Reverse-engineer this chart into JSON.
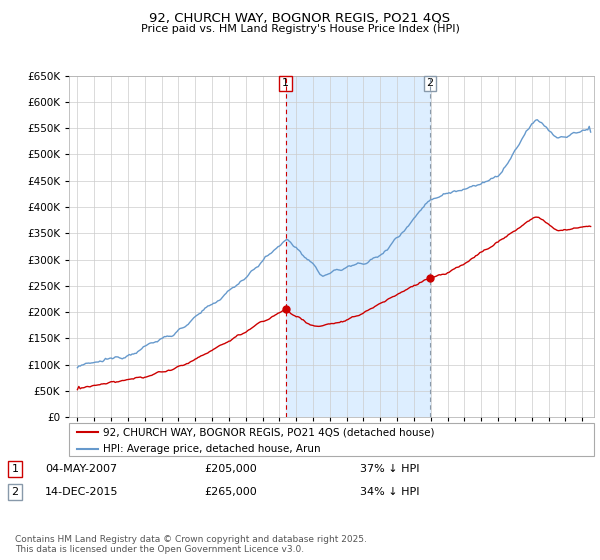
{
  "title": "92, CHURCH WAY, BOGNOR REGIS, PO21 4QS",
  "subtitle": "Price paid vs. HM Land Registry's House Price Index (HPI)",
  "legend_label_red": "92, CHURCH WAY, BOGNOR REGIS, PO21 4QS (detached house)",
  "legend_label_blue": "HPI: Average price, detached house, Arun",
  "transaction1_date": "04-MAY-2007",
  "transaction1_price": "£205,000",
  "transaction1_note": "37% ↓ HPI",
  "transaction2_date": "14-DEC-2015",
  "transaction2_price": "£265,000",
  "transaction2_note": "34% ↓ HPI",
  "footer": "Contains HM Land Registry data © Crown copyright and database right 2025.\nThis data is licensed under the Open Government Licence v3.0.",
  "ylim": [
    0,
    650000
  ],
  "yticks": [
    0,
    50000,
    100000,
    150000,
    200000,
    250000,
    300000,
    350000,
    400000,
    450000,
    500000,
    550000,
    600000,
    650000
  ],
  "color_red": "#cc0000",
  "color_blue": "#6699cc",
  "color_vline1": "#cc0000",
  "color_vline2": "#8899aa",
  "shade_color": "#ddeeff",
  "bg_color": "#ffffff",
  "grid_color": "#cccccc",
  "t1": 2007.37,
  "t2": 2015.96,
  "price1": 205000,
  "price2": 265000
}
